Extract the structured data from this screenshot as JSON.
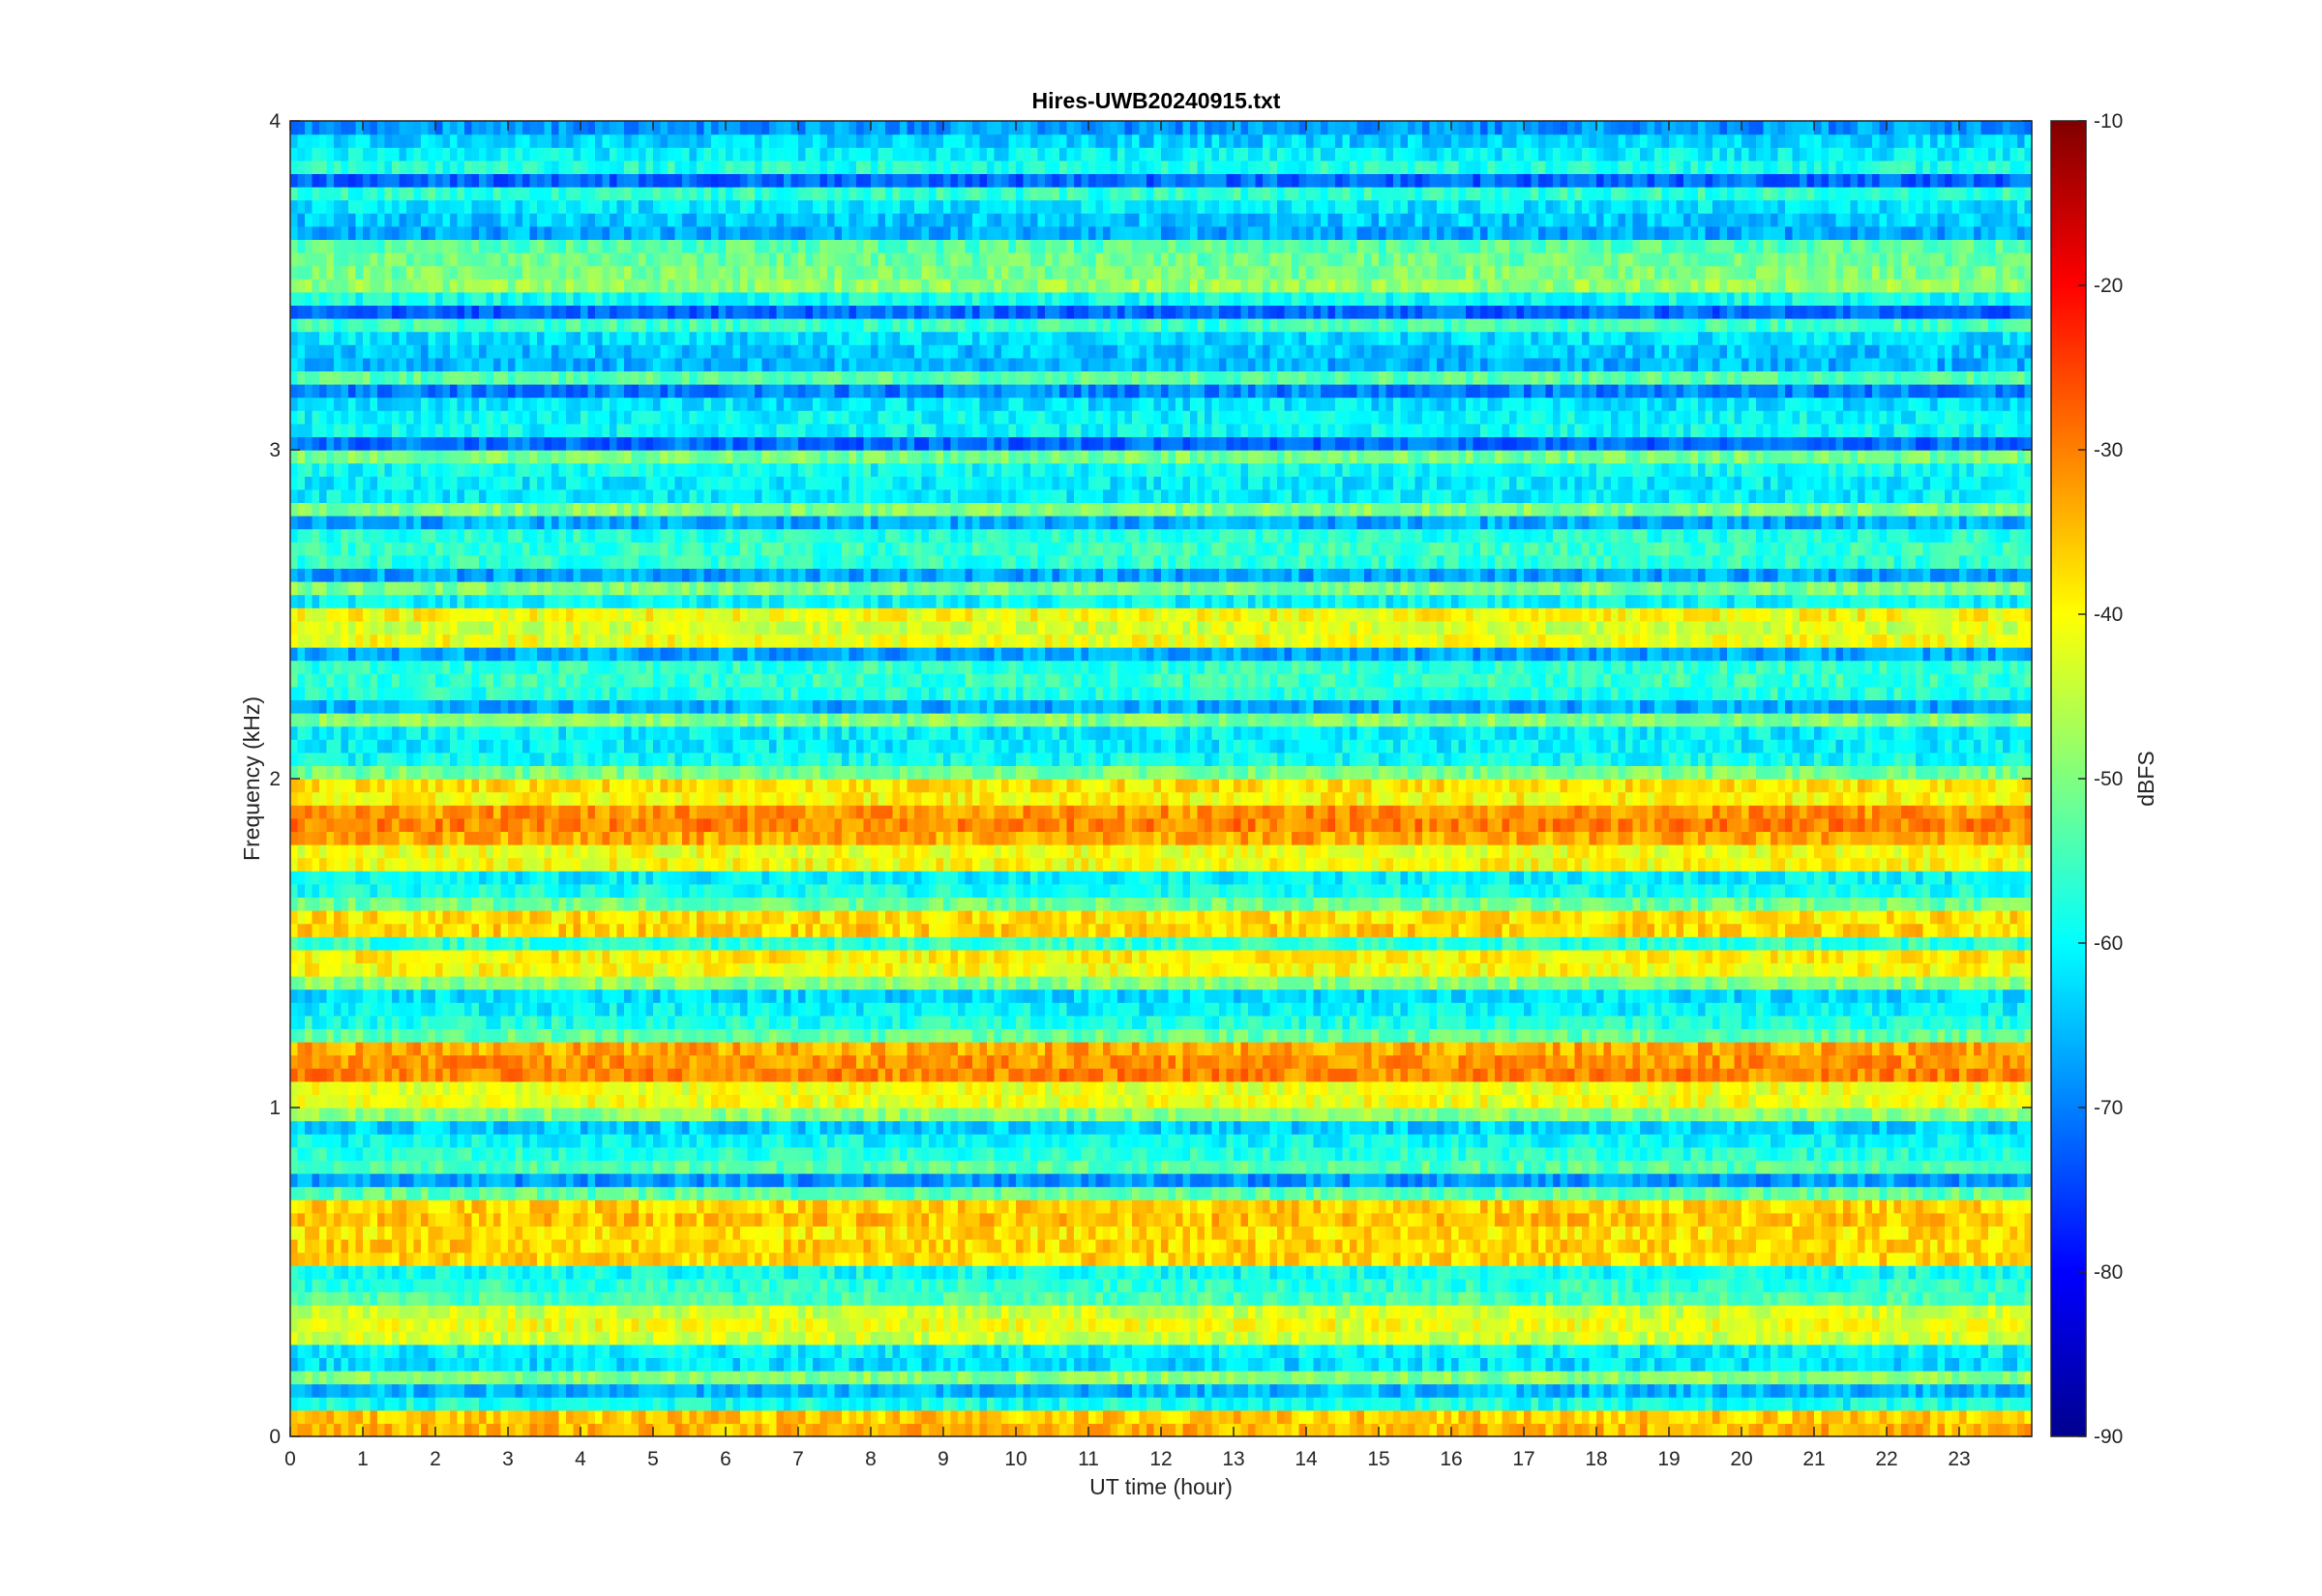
{
  "chart_data": {
    "type": "heatmap",
    "title": "Hires-UWB20240915.txt",
    "xlabel": "UT time (hour)",
    "ylabel": "Frequency (kHz)",
    "colorbar_label": "dBFS",
    "colormap": "jet",
    "xlim": [
      0,
      24
    ],
    "ylim": [
      0,
      4
    ],
    "clim": [
      -90,
      -10
    ],
    "x_ticks": [
      "0",
      "1",
      "2",
      "3",
      "4",
      "5",
      "6",
      "7",
      "8",
      "9",
      "10",
      "11",
      "12",
      "13",
      "14",
      "15",
      "16",
      "17",
      "18",
      "19",
      "20",
      "21",
      "22",
      "23"
    ],
    "y_ticks": [
      "0",
      "1",
      "2",
      "3",
      "4"
    ],
    "colorbar_ticks": [
      "-10",
      "-20",
      "-30",
      "-40",
      "-50",
      "-60",
      "-70",
      "-80",
      "-90"
    ],
    "description_bands": [
      {
        "freq_khz": 0.05,
        "level_dbfs": -35
      },
      {
        "freq_khz": 0.35,
        "level_dbfs": -42
      },
      {
        "freq_khz": 0.55,
        "level_dbfs": -38
      },
      {
        "freq_khz": 0.65,
        "level_dbfs": -37
      },
      {
        "freq_khz": 1.05,
        "level_dbfs": -40
      },
      {
        "freq_khz": 1.15,
        "level_dbfs": -32
      },
      {
        "freq_khz": 1.45,
        "level_dbfs": -40
      },
      {
        "freq_khz": 1.55,
        "level_dbfs": -36
      },
      {
        "freq_khz": 1.75,
        "level_dbfs": -40
      },
      {
        "freq_khz": 1.85,
        "level_dbfs": -32
      },
      {
        "freq_khz": 1.95,
        "level_dbfs": -38
      },
      {
        "freq_khz": 2.45,
        "level_dbfs": -42
      },
      {
        "freq_khz": 3.55,
        "level_dbfs": -50
      }
    ],
    "grid": false
  }
}
